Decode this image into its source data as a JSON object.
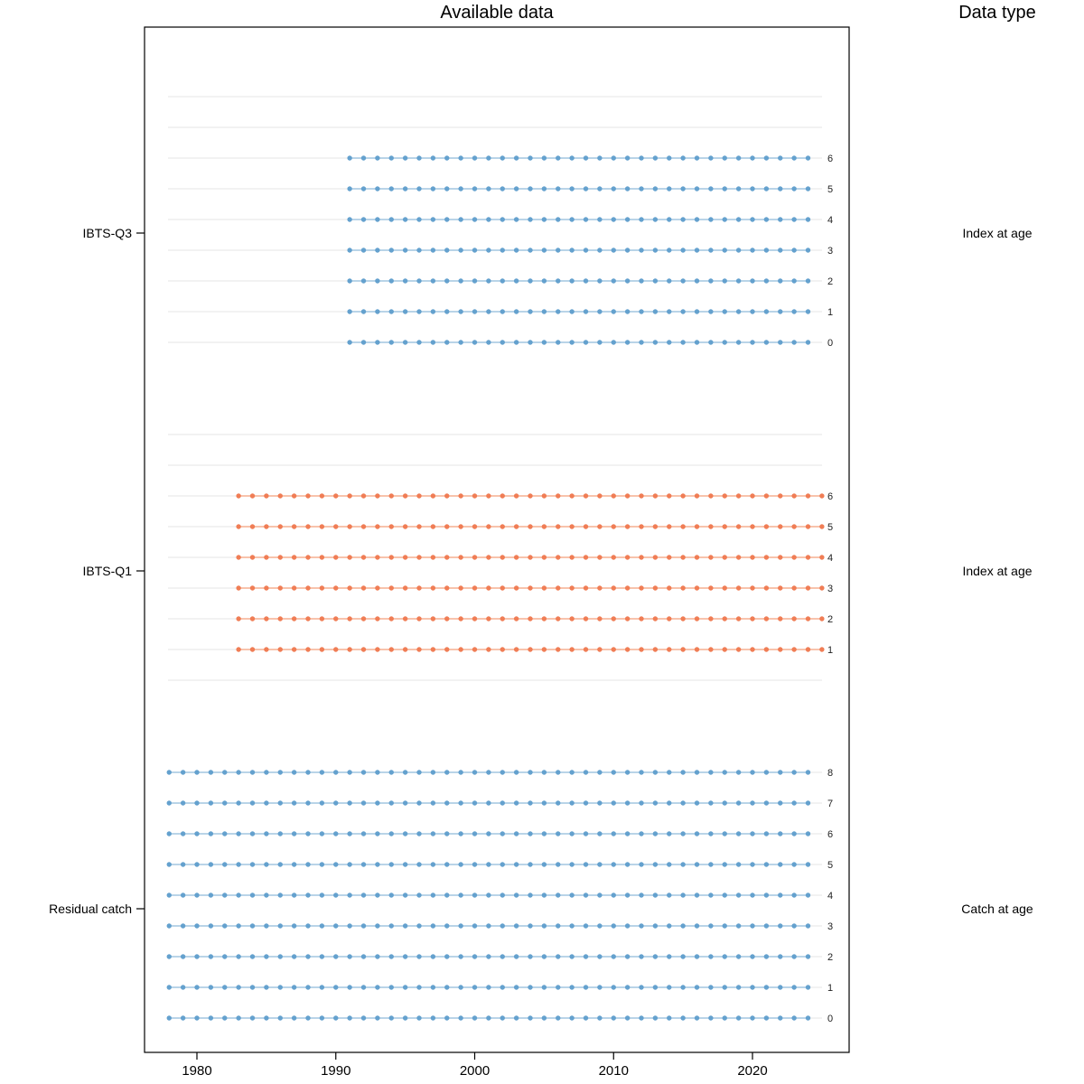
{
  "title": "Available data",
  "right_header": "Data type",
  "x_axis": {
    "ticks": [
      1980,
      1990,
      2000,
      2010,
      2020
    ]
  },
  "chart_data": {
    "type": "scatter",
    "description": "Data availability by fleet, age and year; one dot per year with data",
    "x_range": [
      1978,
      2025
    ],
    "age_rows_top_to_bottom": [
      8,
      7,
      6,
      5,
      4,
      3,
      2,
      1,
      0
    ],
    "grid_color": "#E9E9E9",
    "axis_color": "#000000",
    "fleets": [
      {
        "name": "IBTS-Q3",
        "data_type": "Index at age",
        "year_start": 1991,
        "year_end": 2024,
        "ages": [
          0,
          1,
          2,
          3,
          4,
          5,
          6
        ],
        "point_color": "#64A1CE",
        "line_color": "#B9D4E8"
      },
      {
        "name": "IBTS-Q1",
        "data_type": "Index at age",
        "year_start": 1983,
        "year_end": 2025,
        "ages": [
          1,
          2,
          3,
          4,
          5,
          6
        ],
        "point_color": "#F07D55",
        "line_color": "#F8C3AC"
      },
      {
        "name": "Residual catch",
        "data_type": "Catch at age",
        "year_start": 1978,
        "year_end": 2024,
        "ages": [
          0,
          1,
          2,
          3,
          4,
          5,
          6,
          7,
          8
        ],
        "point_color": "#64A1CE",
        "line_color": "#B9D4E8"
      }
    ]
  }
}
